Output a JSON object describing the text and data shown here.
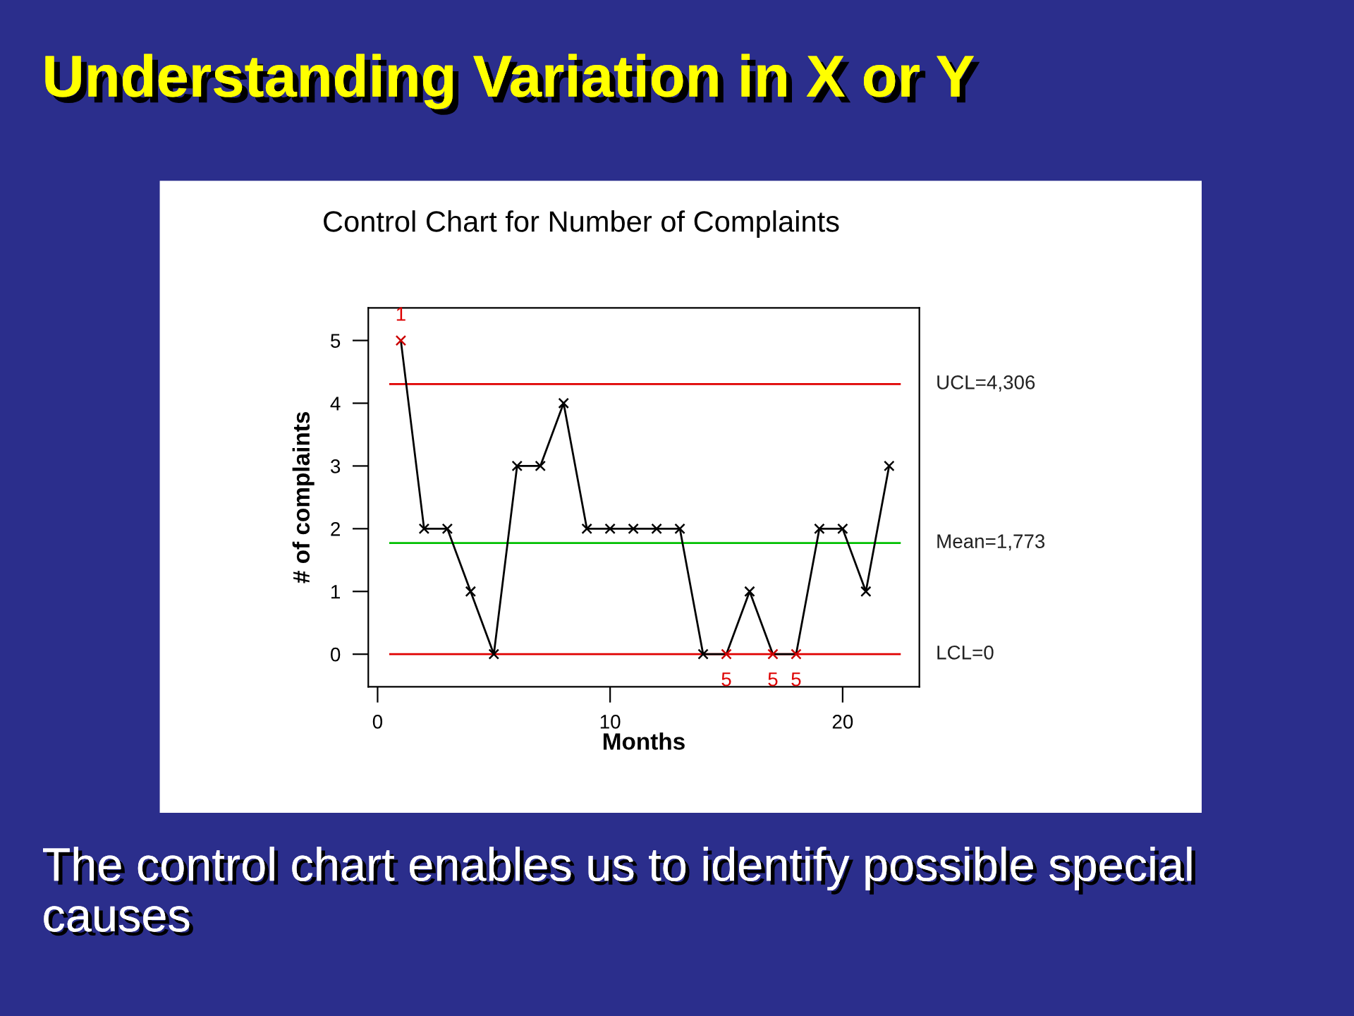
{
  "chart_data": {
    "type": "line",
    "title": "Understanding Variation in X or Y",
    "subtitle": "Control Chart for Number of Complaints",
    "xlabel": "Months",
    "ylabel": "# of complaints",
    "x": [
      1,
      2,
      3,
      4,
      5,
      6,
      7,
      8,
      9,
      10,
      11,
      12,
      13,
      14,
      15,
      16,
      17,
      18,
      19,
      20,
      21,
      22
    ],
    "series": [
      {
        "color": "#000000",
        "colors": [
          "#cc0000",
          "#000000",
          "#000000",
          "#000000",
          "#000000",
          "#000000",
          "#000000",
          "#000000",
          "#000000",
          "#000000",
          "#000000",
          "#000000",
          "#000000",
          "#000000",
          "#cc0000",
          "#000000",
          "#cc0000",
          "#cc0000",
          "#000000",
          "#000000",
          "#000000",
          "#000000"
        ],
        "values": [
          5,
          2,
          2,
          1,
          0,
          3,
          3,
          4,
          2,
          2,
          2,
          2,
          2,
          0,
          0,
          1,
          0,
          0,
          2,
          2,
          1,
          3
        ]
      }
    ],
    "marker": "cross",
    "line_style": "solid",
    "grid": false,
    "legend": false,
    "xlim": [
      -0.4,
      23.3
    ],
    "ylim": [
      -0.52,
      5.52
    ],
    "xticks": [
      0,
      10,
      20
    ],
    "yticks": [
      0,
      1,
      2,
      3,
      4,
      5
    ],
    "ref_lines": [
      {
        "axis": "y",
        "value": 4.306,
        "label": "UCL=4,306",
        "color": "#e00000"
      },
      {
        "axis": "y",
        "value": 1.773,
        "label": "Mean=1,773",
        "color": "#00c000"
      },
      {
        "axis": "y",
        "value": 0,
        "label": "LCL=0",
        "color": "#e00000"
      }
    ],
    "annotations": [
      {
        "text": "1",
        "x": 1,
        "y": 5
      },
      {
        "text": "5",
        "x": 15,
        "y": 0
      },
      {
        "text": "5",
        "x": 17,
        "y": 0
      },
      {
        "text": "5",
        "x": 18,
        "y": 0
      },
      "The control chart enables us to identify possible special causes"
    ]
  }
}
